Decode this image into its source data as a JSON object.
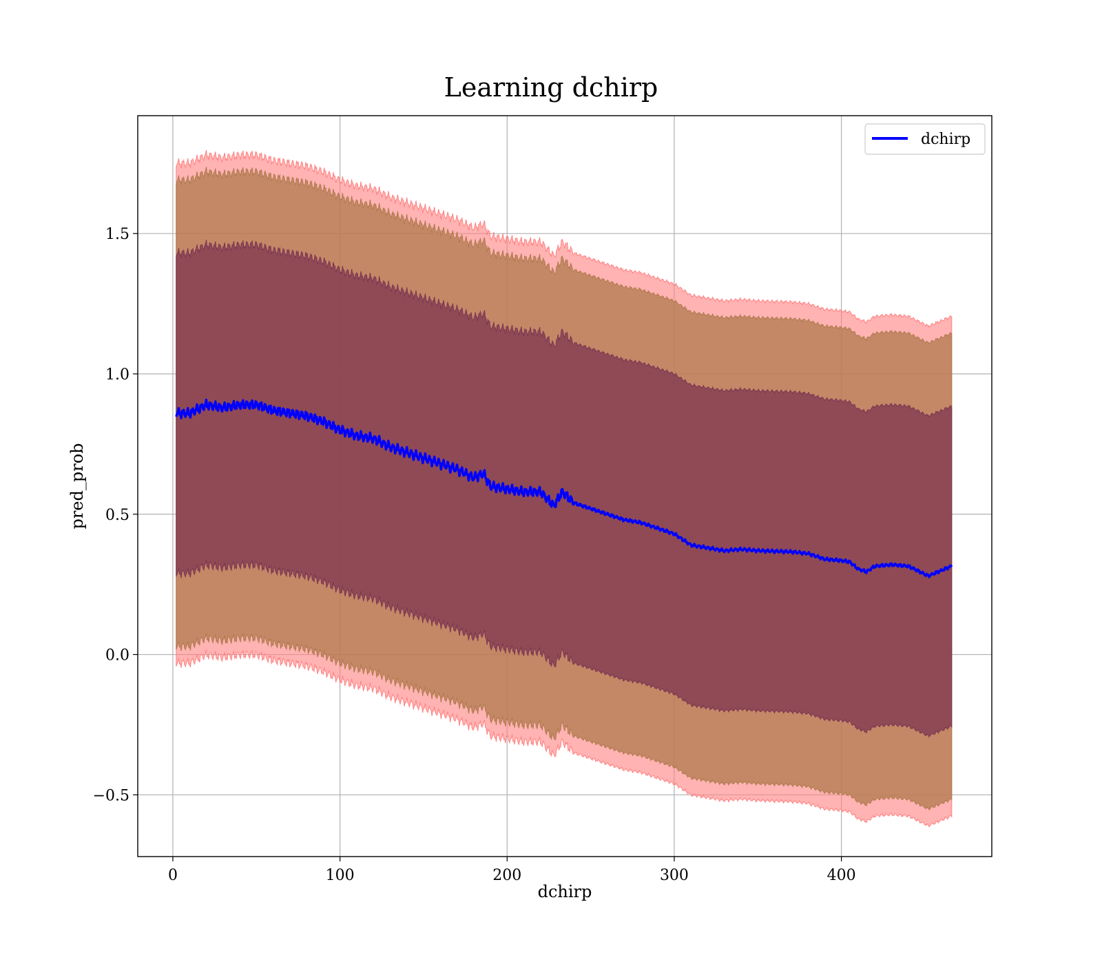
{
  "chart_data": {
    "type": "area",
    "title": "Learning dchirp",
    "xlabel": "dchirp",
    "ylabel": "pred_prob",
    "xlim": [
      -21,
      490
    ],
    "ylim": [
      -0.72,
      1.92
    ],
    "x_ticks": [
      0,
      100,
      200,
      300,
      400
    ],
    "y_ticks": [
      -0.5,
      0.0,
      0.5,
      1.0,
      1.5
    ],
    "y_tick_labels": [
      "−0.5",
      "0.0",
      "0.5",
      "1.0",
      "1.5"
    ],
    "grid": true,
    "legend": {
      "position": "top-right",
      "entries": [
        "dchirp"
      ]
    },
    "colors": {
      "line": "#0000ff",
      "band_outer": "#ff8080",
      "band_mid": "#b07a4d",
      "band_inner": "#7d3550"
    },
    "x": [
      2,
      10,
      20,
      30,
      40,
      50,
      60,
      70,
      80,
      90,
      100,
      110,
      120,
      130,
      140,
      150,
      160,
      170,
      180,
      186,
      190,
      200,
      210,
      220,
      228,
      233,
      240,
      250,
      260,
      270,
      280,
      290,
      300,
      310,
      320,
      330,
      340,
      350,
      360,
      370,
      380,
      390,
      400,
      405,
      410,
      415,
      420,
      430,
      440,
      452,
      466
    ],
    "series": [
      {
        "name": "dchirp",
        "values": [
          0.86,
          0.86,
          0.89,
          0.88,
          0.89,
          0.89,
          0.87,
          0.86,
          0.85,
          0.83,
          0.8,
          0.78,
          0.77,
          0.74,
          0.72,
          0.7,
          0.68,
          0.66,
          0.63,
          0.645,
          0.6,
          0.59,
          0.58,
          0.58,
          0.53,
          0.58,
          0.54,
          0.52,
          0.5,
          0.48,
          0.47,
          0.45,
          0.43,
          0.39,
          0.38,
          0.37,
          0.375,
          0.37,
          0.368,
          0.366,
          0.36,
          0.34,
          0.335,
          0.33,
          0.305,
          0.295,
          0.315,
          0.32,
          0.315,
          0.28,
          0.315
        ]
      }
    ],
    "bands": [
      {
        "name": "outer",
        "lower_offset": -0.89,
        "upper_offset": 0.89
      },
      {
        "name": "mid",
        "lower_offset": -0.83,
        "upper_offset": 0.83
      },
      {
        "name": "inner",
        "lower_offset": -0.57,
        "upper_offset": 0.57
      }
    ]
  }
}
